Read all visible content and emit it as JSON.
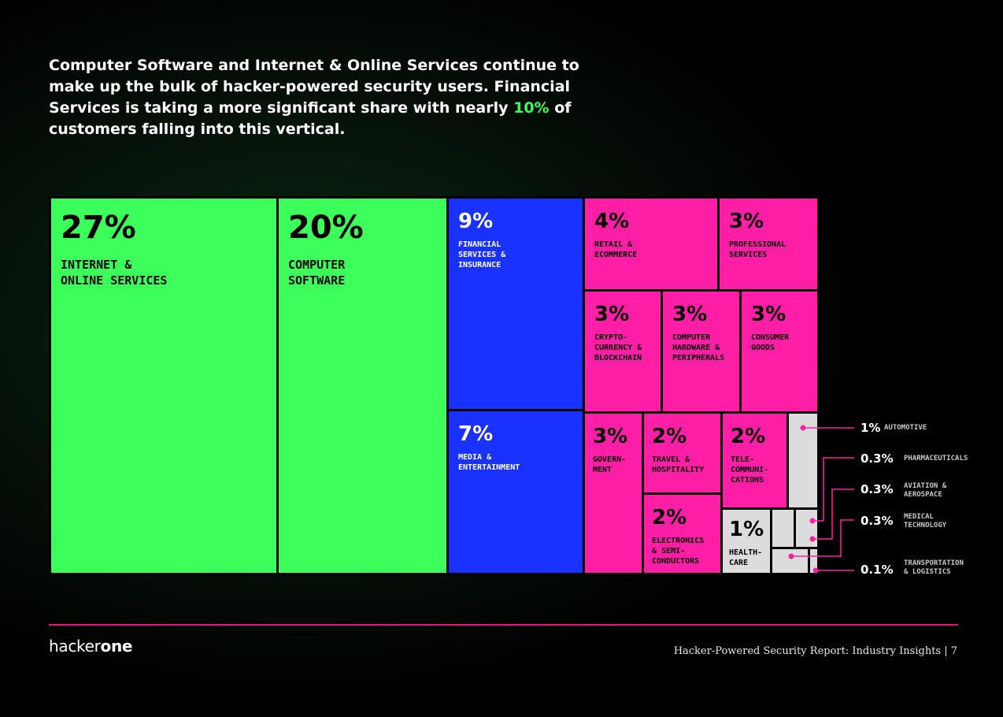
{
  "headline": {
    "part1": "Computer Software and Internet & Online Services continue to make up the bulk of hacker-powered security users. Financial Services is taking a more significant share with nearly ",
    "highlight": "10%",
    "part2": " of customers falling into this vertical."
  },
  "colors": {
    "green": "#3dff5a",
    "blue": "#1a32ff",
    "pink": "#ff1fa6",
    "grey": "#dcdcdc",
    "leader": "#ff1fa6"
  },
  "chart_data": {
    "type": "treemap",
    "unit": "% of customers",
    "items": [
      {
        "id": "internet",
        "value": "27%",
        "label": "INTERNET &\nONLINE SERVICES",
        "color": "green"
      },
      {
        "id": "software",
        "value": "20%",
        "label": "COMPUTER\nSOFTWARE",
        "color": "green"
      },
      {
        "id": "financial",
        "value": "9%",
        "label": "FINANCIAL\nSERVICES &\nINSURANCE",
        "color": "blue"
      },
      {
        "id": "media",
        "value": "7%",
        "label": "MEDIA &\nENTERTAINMENT",
        "color": "blue"
      },
      {
        "id": "retail",
        "value": "4%",
        "label": "RETAIL &\nECOMMERCE",
        "color": "pink"
      },
      {
        "id": "professional",
        "value": "3%",
        "label": "PROFESSIONAL\nSERVICES",
        "color": "pink"
      },
      {
        "id": "crypto",
        "value": "3%",
        "label": "CRYPTO-\nCURRENCY &\nBLOCKCHAIN",
        "color": "pink"
      },
      {
        "id": "hardware",
        "value": "3%",
        "label": "COMPUTER\nHARDWARE &\nPERIPHERALS",
        "color": "pink"
      },
      {
        "id": "consumer",
        "value": "3%",
        "label": "CONSUMER\nGOODS",
        "color": "pink"
      },
      {
        "id": "government",
        "value": "3%",
        "label": "GOVERN-\nMENT",
        "color": "pink"
      },
      {
        "id": "travel",
        "value": "2%",
        "label": "TRAVEL &\nHOSPITALITY",
        "color": "pink"
      },
      {
        "id": "telecom",
        "value": "2%",
        "label": "TELE-\nCOMMUNI-\nCATIONS",
        "color": "pink"
      },
      {
        "id": "electronics",
        "value": "2%",
        "label": "ELECTRONICS\n& SEMI-\nCONDUCTORS",
        "color": "pink"
      },
      {
        "id": "healthcare",
        "value": "1%",
        "label": "HEALTH-\nCARE",
        "color": "grey"
      },
      {
        "id": "automotive",
        "value": "1%",
        "label": "AUTOMOTIVE",
        "color": "grey",
        "external": true
      },
      {
        "id": "pharma",
        "value": "0.3%",
        "label": "PHARMACEUTICALS",
        "color": "grey",
        "external": true
      },
      {
        "id": "aviation",
        "value": "0.3%",
        "label": "AVIATION &\nAEROSPACE",
        "color": "grey",
        "external": true
      },
      {
        "id": "medical",
        "value": "0.3%",
        "label": "MEDICAL\nTECHNOLOGY",
        "color": "grey",
        "external": true
      },
      {
        "id": "transport",
        "value": "0.1%",
        "label": "TRANSPORTATION\n& LOGISTICS",
        "color": "grey",
        "external": true
      }
    ]
  },
  "footer": {
    "logo_light": "hacker",
    "logo_bold": "one",
    "report_title": "Hacker-Powered Security Report: Industry Insights  |  7"
  }
}
